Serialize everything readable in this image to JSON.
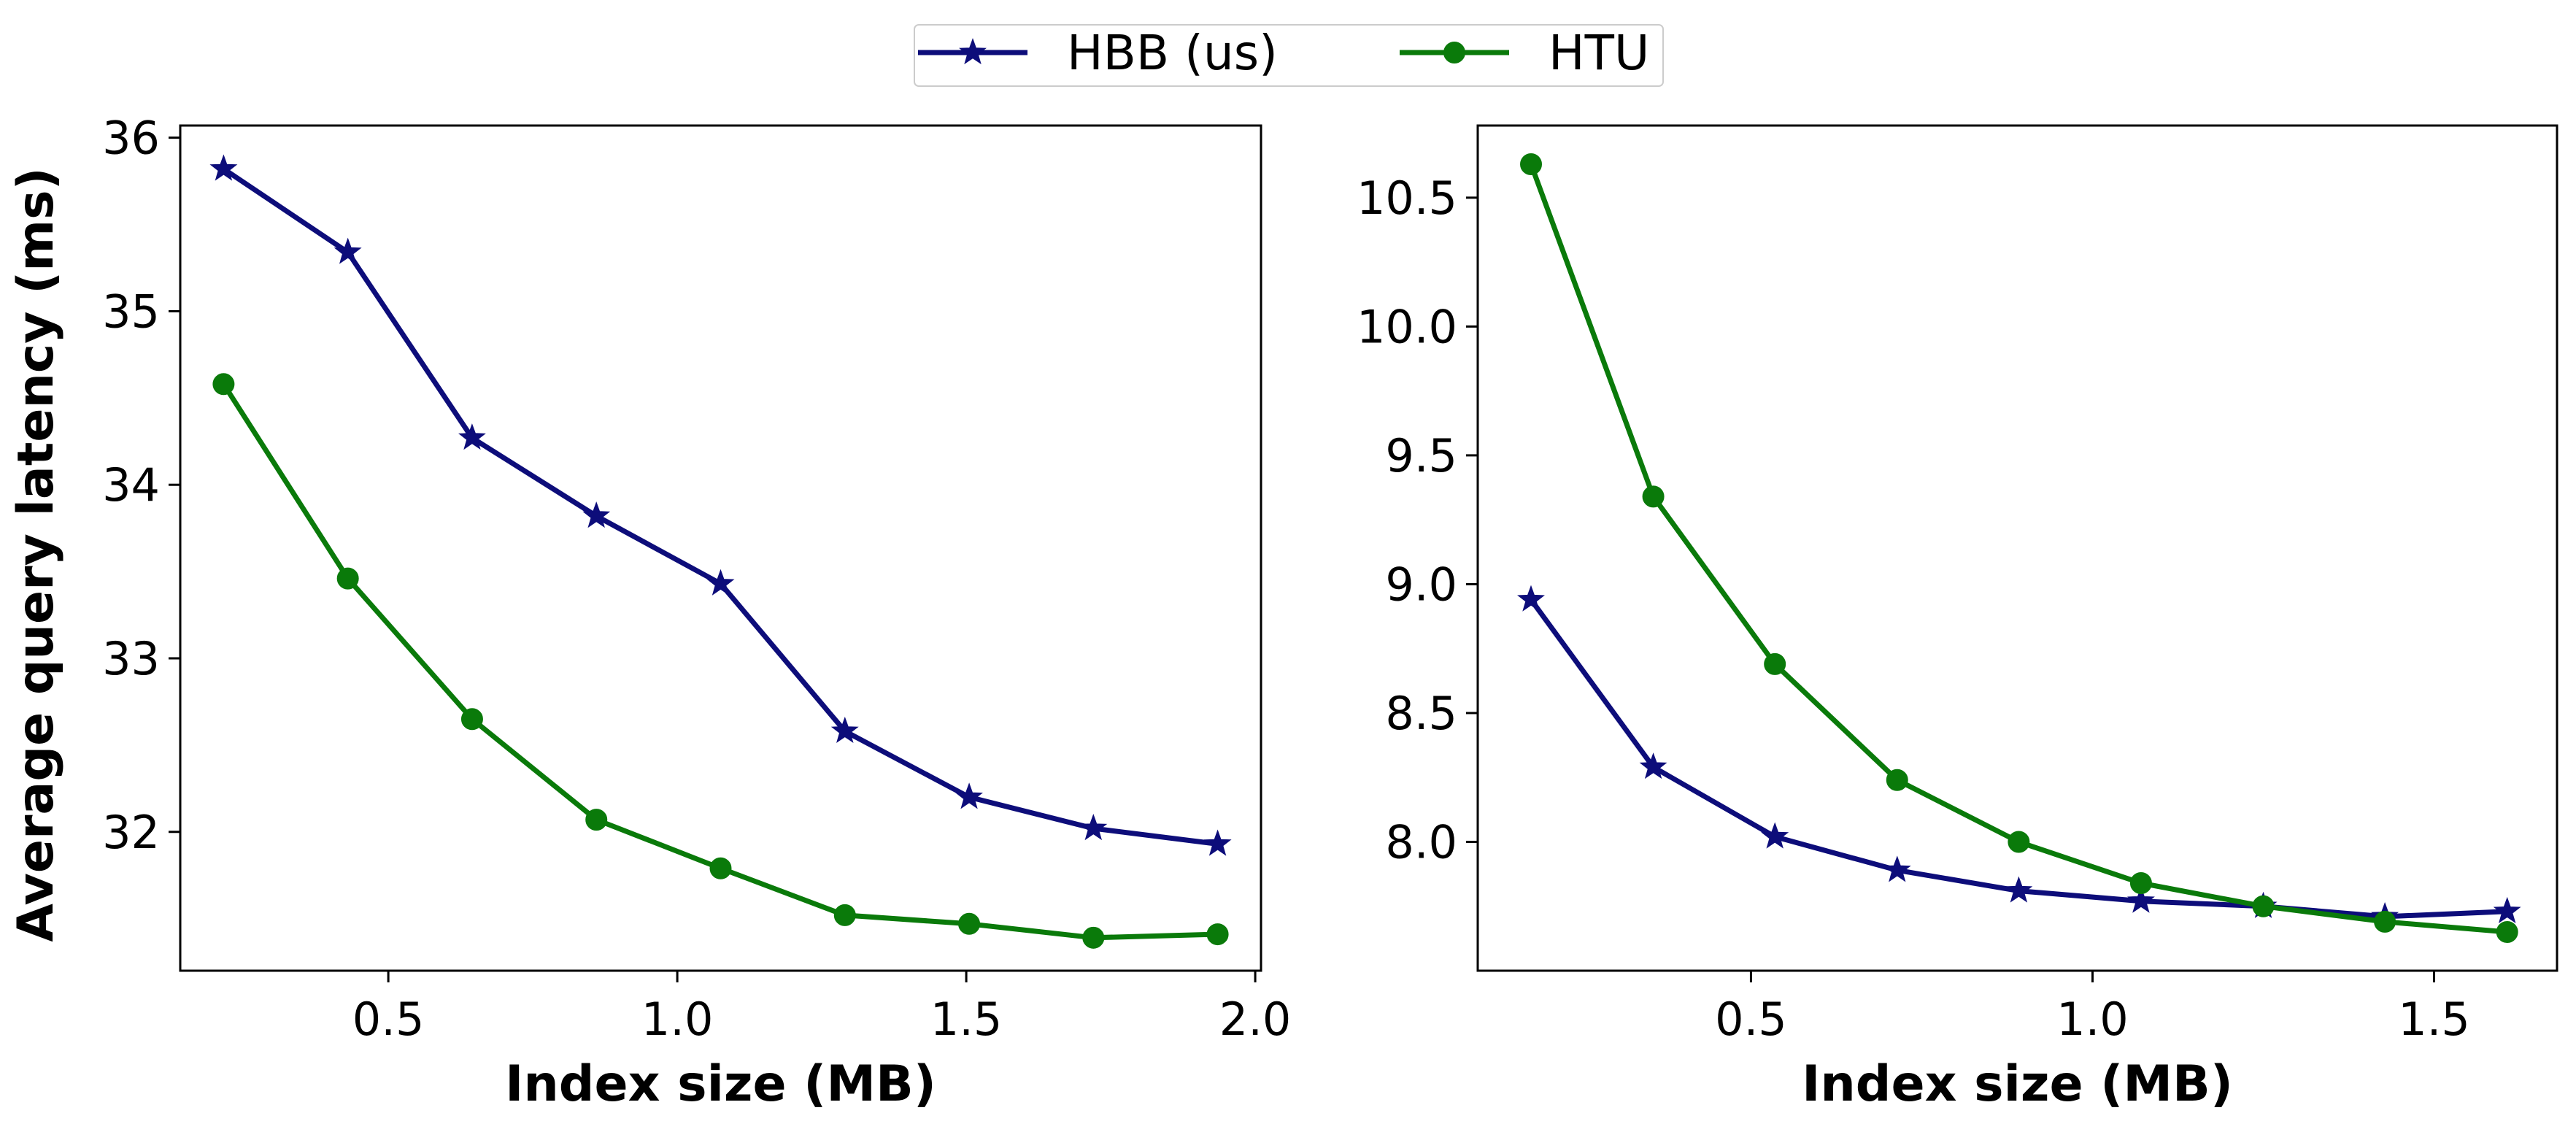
{
  "colors": {
    "hbb": "#0d0d7a",
    "htu": "#0a7a0a",
    "axis": "#000000",
    "background": "#ffffff"
  },
  "legend": {
    "items": [
      {
        "label": "HBB (us)",
        "marker": "star",
        "color": "#0d0d7a"
      },
      {
        "label": "HTU",
        "marker": "circle",
        "color": "#0a7a0a"
      }
    ]
  },
  "chart_data": [
    {
      "type": "line",
      "title": "",
      "xlabel": "Index size (MB)",
      "ylabel": "Average query latency (ms)",
      "xlim": [
        0.14,
        2.01
      ],
      "ylim": [
        31.2,
        36.07
      ],
      "x_ticks": [
        0.5,
        1.0,
        1.5,
        2.0
      ],
      "x_tick_labels": [
        "0.5",
        "1.0",
        "1.5",
        "2.0"
      ],
      "y_ticks": [
        32,
        33,
        34,
        35,
        36
      ],
      "y_tick_labels": [
        "32",
        "33",
        "34",
        "35",
        "36"
      ],
      "grid": false,
      "series": [
        {
          "name": "HBB (us)",
          "marker": "star",
          "color": "#0d0d7a",
          "x": [
            0.215,
            0.43,
            0.645,
            0.86,
            1.075,
            1.29,
            1.505,
            1.72,
            1.935
          ],
          "y": [
            35.82,
            35.34,
            34.27,
            33.82,
            33.43,
            32.58,
            32.2,
            32.02,
            31.93
          ]
        },
        {
          "name": "HTU",
          "marker": "circle",
          "color": "#0a7a0a",
          "x": [
            0.215,
            0.43,
            0.645,
            0.86,
            1.075,
            1.29,
            1.505,
            1.72,
            1.935
          ],
          "y": [
            34.58,
            33.46,
            32.65,
            32.07,
            31.79,
            31.52,
            31.47,
            31.39,
            31.41
          ]
        }
      ]
    },
    {
      "type": "line",
      "title": "",
      "xlabel": "Index size (MB)",
      "ylabel": "",
      "xlim": [
        0.1,
        1.68
      ],
      "ylim": [
        7.5,
        10.78
      ],
      "x_ticks": [
        0.5,
        1.0,
        1.5
      ],
      "x_tick_labels": [
        "0.5",
        "1.0",
        "1.5"
      ],
      "y_ticks": [
        8.0,
        8.5,
        9.0,
        9.5,
        10.0,
        10.5
      ],
      "y_tick_labels": [
        "8.0",
        "8.5",
        "9.0",
        "9.5",
        "10.0",
        "10.5"
      ],
      "grid": false,
      "series": [
        {
          "name": "HBB (us)",
          "marker": "star",
          "color": "#0d0d7a",
          "x": [
            0.178,
            0.357,
            0.535,
            0.714,
            0.892,
            1.071,
            1.25,
            1.428,
            1.607
          ],
          "y": [
            8.94,
            8.29,
            8.02,
            7.89,
            7.81,
            7.77,
            7.75,
            7.71,
            7.73
          ]
        },
        {
          "name": "HTU",
          "marker": "circle",
          "color": "#0a7a0a",
          "x": [
            0.178,
            0.357,
            0.535,
            0.714,
            0.892,
            1.071,
            1.25,
            1.428,
            1.607
          ],
          "y": [
            10.63,
            9.34,
            8.69,
            8.24,
            8.0,
            7.84,
            7.75,
            7.69,
            7.65
          ]
        }
      ]
    }
  ]
}
